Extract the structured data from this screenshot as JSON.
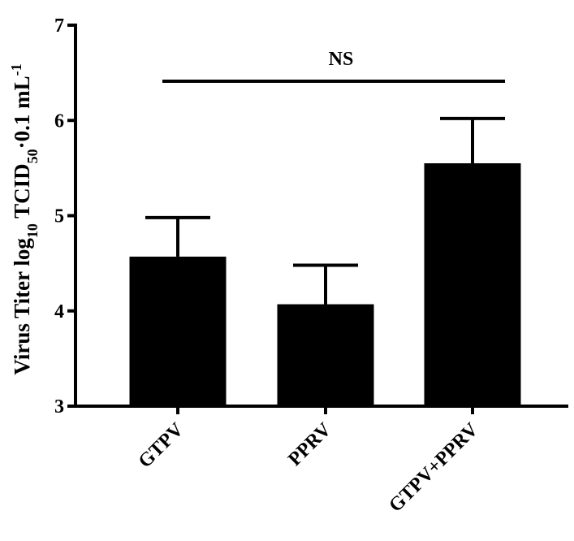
{
  "chart_data": {
    "type": "bar",
    "ylabel": [
      "Virus Titer log",
      "10",
      " TCID",
      "50",
      "·0.1 mL",
      "-1"
    ],
    "categories": [
      "GTPV",
      "PPRV",
      "GTPV+PPRV"
    ],
    "values": [
      4.57,
      4.07,
      5.55
    ],
    "errors": [
      0.41,
      0.41,
      0.47
    ],
    "color": "#000000",
    "ylim": [
      3,
      7
    ],
    "yticks": [
      3,
      4,
      5,
      6,
      7
    ],
    "annotation": "NS"
  }
}
